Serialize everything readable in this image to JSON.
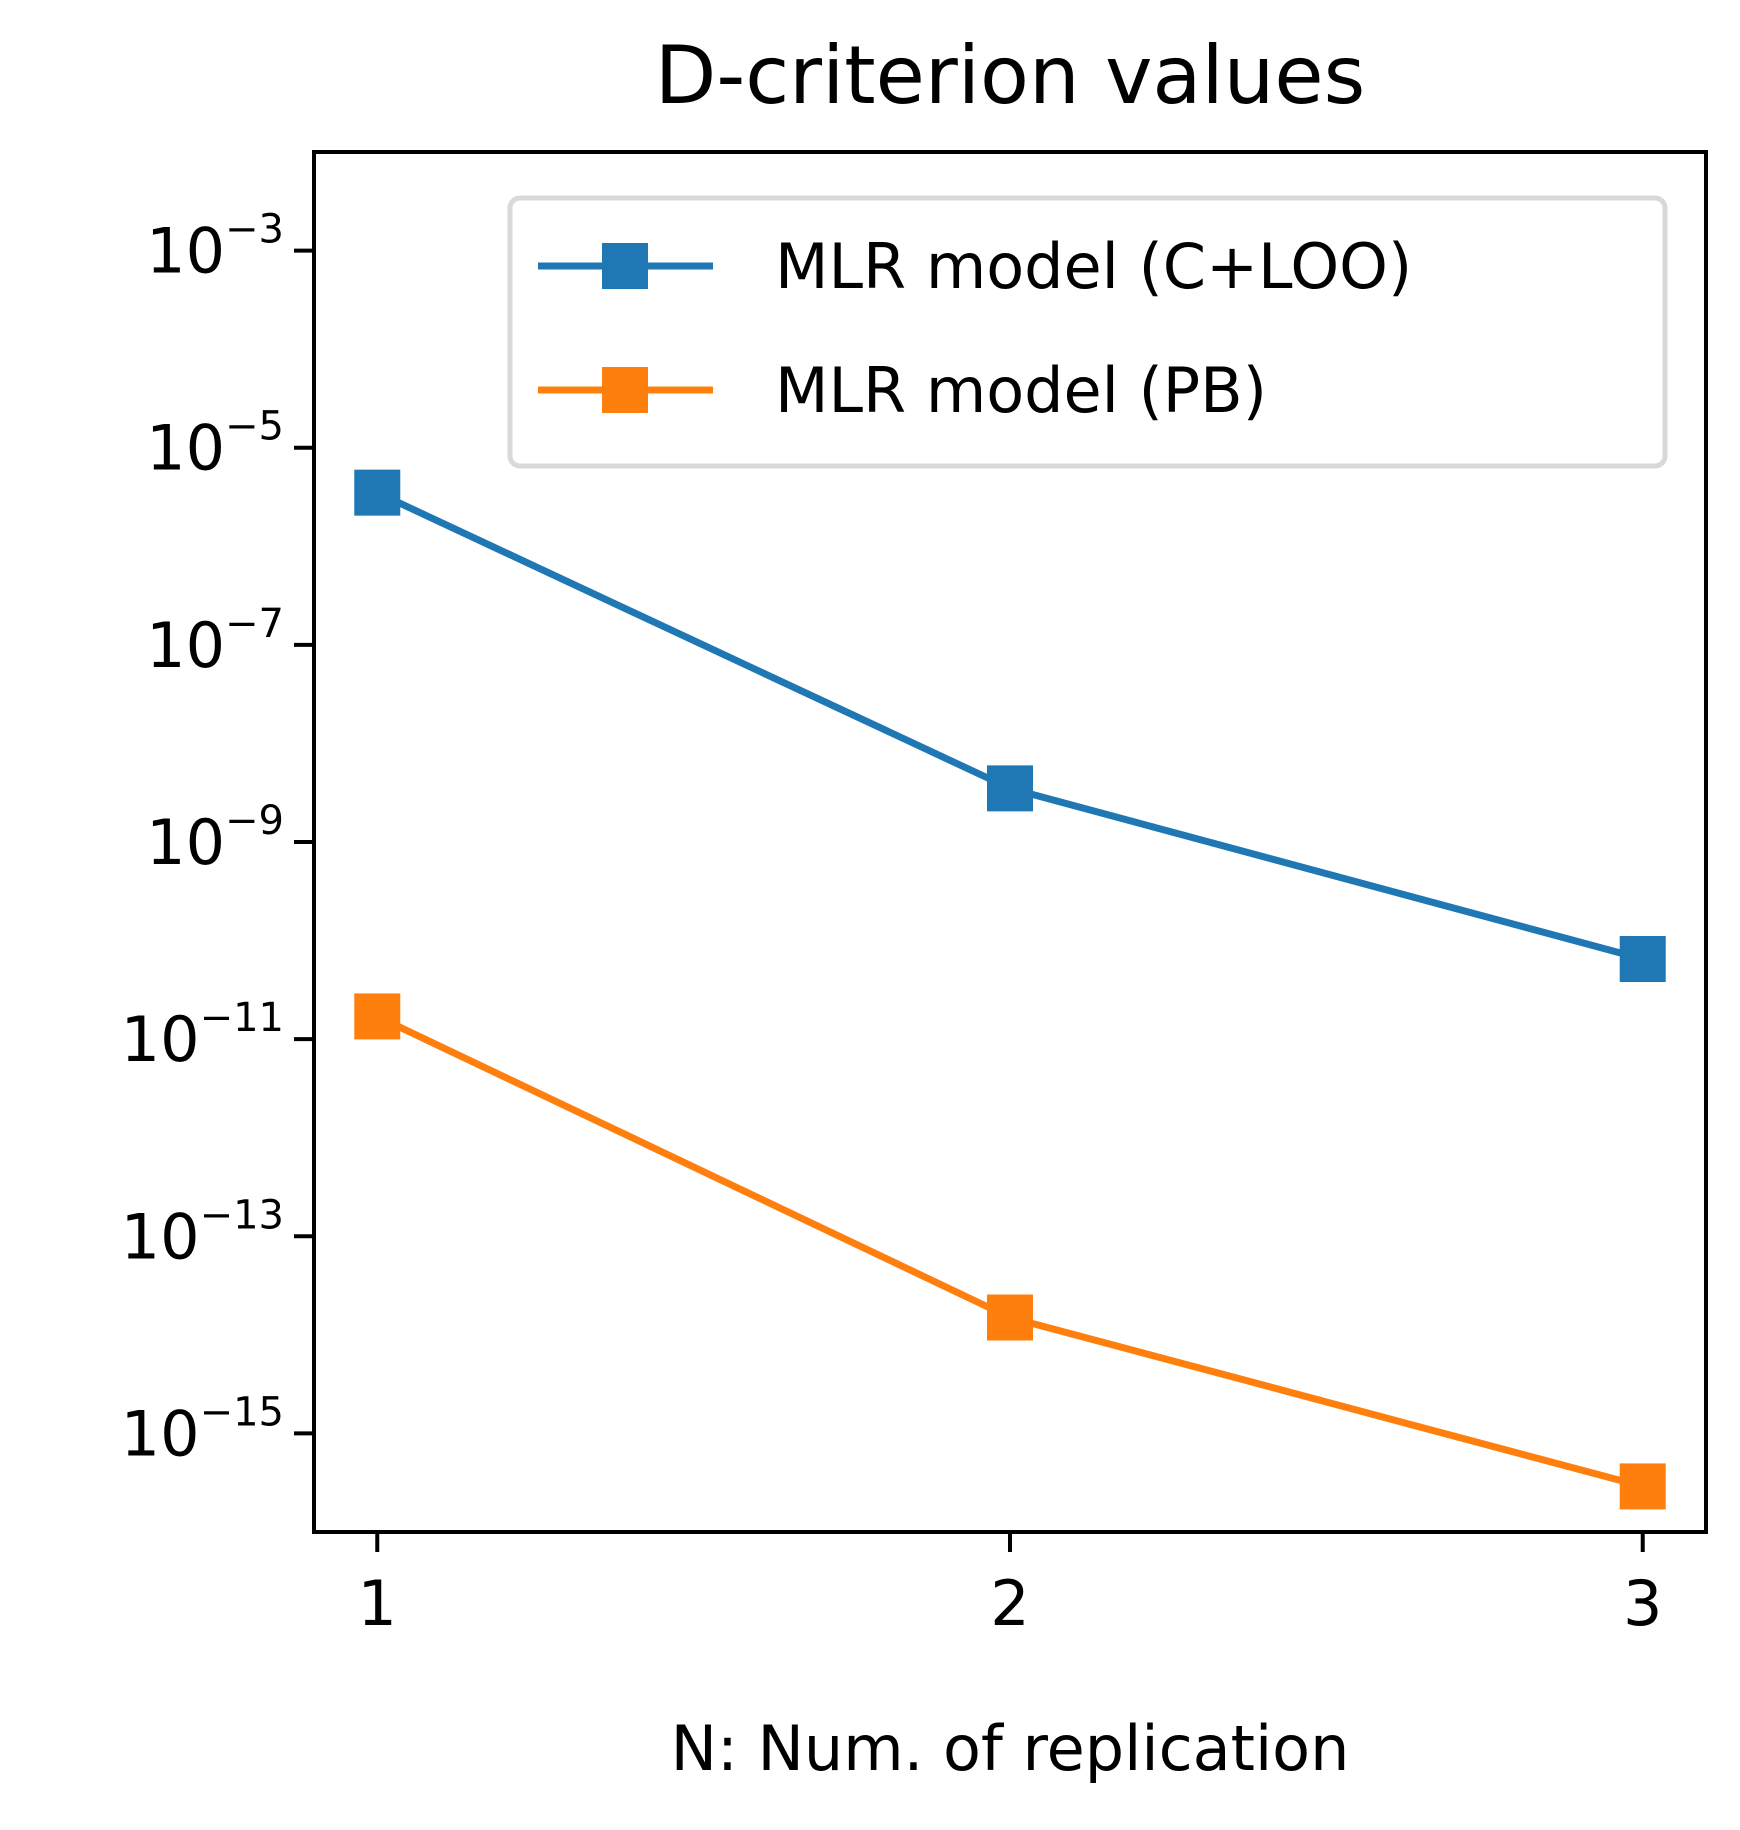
{
  "chart_data": {
    "type": "line",
    "title": "D-criterion values",
    "xlabel": "N: Num. of replication",
    "ylabel": "",
    "x": [
      1,
      2,
      3
    ],
    "x_ticks": [
      "1",
      "2",
      "3"
    ],
    "xlim": [
      0.9,
      3.1
    ],
    "yscale": "log",
    "ylim": [
      1e-16,
      0.01
    ],
    "y_ticks": [
      {
        "value": 0.001,
        "base": "10",
        "exp": "−3"
      },
      {
        "value": 1e-05,
        "base": "10",
        "exp": "−5"
      },
      {
        "value": 1e-07,
        "base": "10",
        "exp": "−7"
      },
      {
        "value": 1e-09,
        "base": "10",
        "exp": "−9"
      },
      {
        "value": 1e-11,
        "base": "10",
        "exp": "−11"
      },
      {
        "value": 1e-13,
        "base": "10",
        "exp": "−13"
      },
      {
        "value": 1e-15,
        "base": "10",
        "exp": "−15"
      }
    ],
    "grid": false,
    "legend_position": "top-right",
    "marker": "square",
    "series": [
      {
        "name": "MLR model (C+LOO)",
        "color": "#1f77b4",
        "values": [
          3.5e-06,
          3.5e-09,
          6.5e-11
        ]
      },
      {
        "name": "MLR model (PB)",
        "color": "#ff7f0e",
        "values": [
          1.7e-11,
          1.5e-14,
          2.9e-16
        ]
      }
    ]
  }
}
